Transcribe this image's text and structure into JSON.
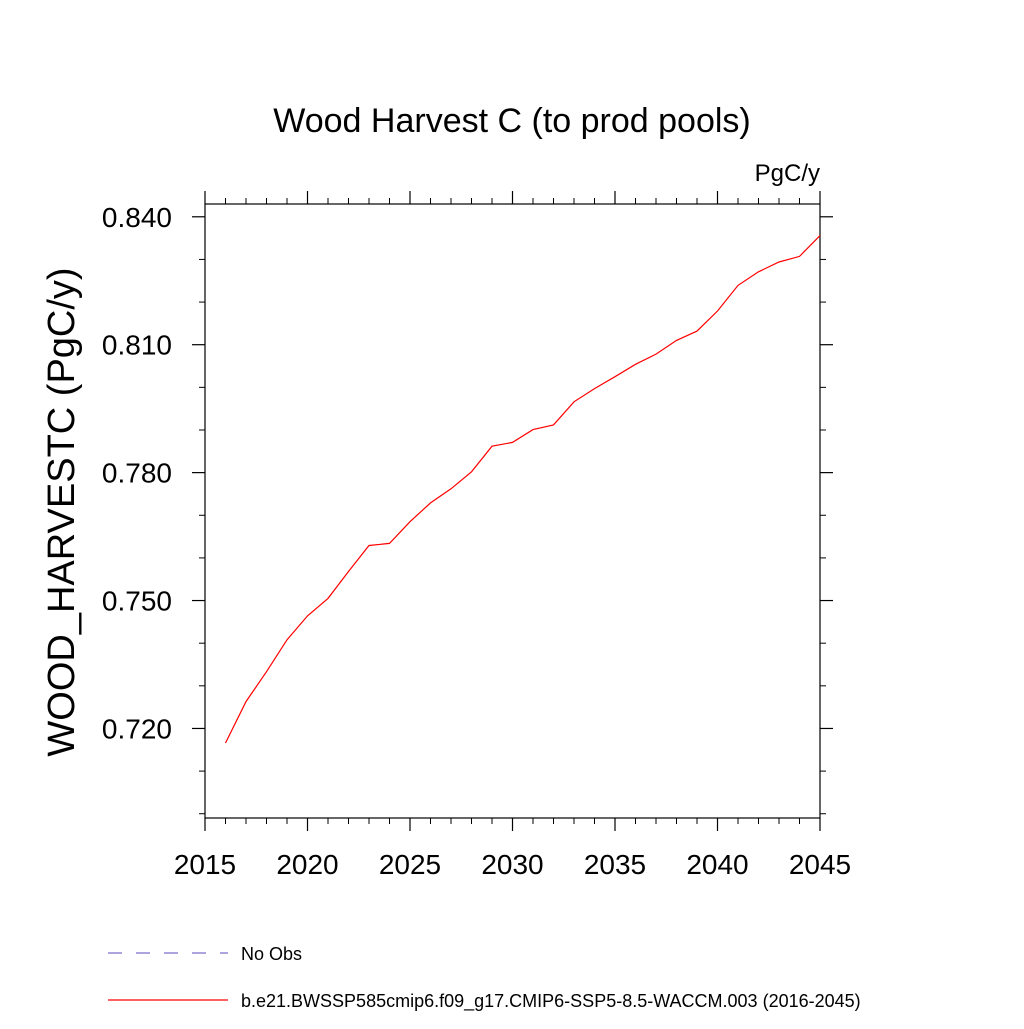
{
  "chart_data": {
    "type": "line",
    "title": "Wood Harvest C (to prod pools)",
    "units_label": "PgC/y",
    "xlabel": "",
    "ylabel": "WOOD_HARVESTC  (PgC/y)",
    "xlim": [
      2015,
      2045
    ],
    "ylim": [
      0.699,
      0.843
    ],
    "x_ticks": [
      2015,
      2020,
      2025,
      2030,
      2035,
      2040,
      2045
    ],
    "x_tick_labels": [
      "2015",
      "2020",
      "2025",
      "2030",
      "2035",
      "2040",
      "2045"
    ],
    "y_ticks": [
      0.72,
      0.75,
      0.78,
      0.81,
      0.84
    ],
    "y_tick_labels": [
      "0.720",
      "0.750",
      "0.780",
      "0.810",
      "0.840"
    ],
    "grid": false,
    "legend_position": "bottom",
    "series": [
      {
        "name": "No Obs",
        "color": "#7b6fc9",
        "dash": "dashed",
        "x": [],
        "y": []
      },
      {
        "name": "b.e21.BWSSP585cmip6.f09_g17.CMIP6-SSP5-8.5-WACCM.003 (2016-2045)",
        "color": "#ff0000",
        "dash": "solid",
        "x": [
          2016,
          2017,
          2018,
          2019,
          2020,
          2021,
          2022,
          2023,
          2024,
          2025,
          2026,
          2027,
          2028,
          2029,
          2030,
          2031,
          2032,
          2033,
          2034,
          2035,
          2036,
          2037,
          2038,
          2039,
          2040,
          2041,
          2042,
          2043,
          2044,
          2045
        ],
        "y": [
          0.7166,
          0.7263,
          0.7333,
          0.7408,
          0.7464,
          0.7505,
          0.7568,
          0.7629,
          0.7634,
          0.7685,
          0.7729,
          0.7762,
          0.7802,
          0.7862,
          0.7871,
          0.7901,
          0.7912,
          0.7966,
          0.7997,
          0.8025,
          0.8054,
          0.8078,
          0.811,
          0.8132,
          0.8179,
          0.8239,
          0.8271,
          0.8294,
          0.8307,
          0.8356
        ]
      }
    ]
  }
}
